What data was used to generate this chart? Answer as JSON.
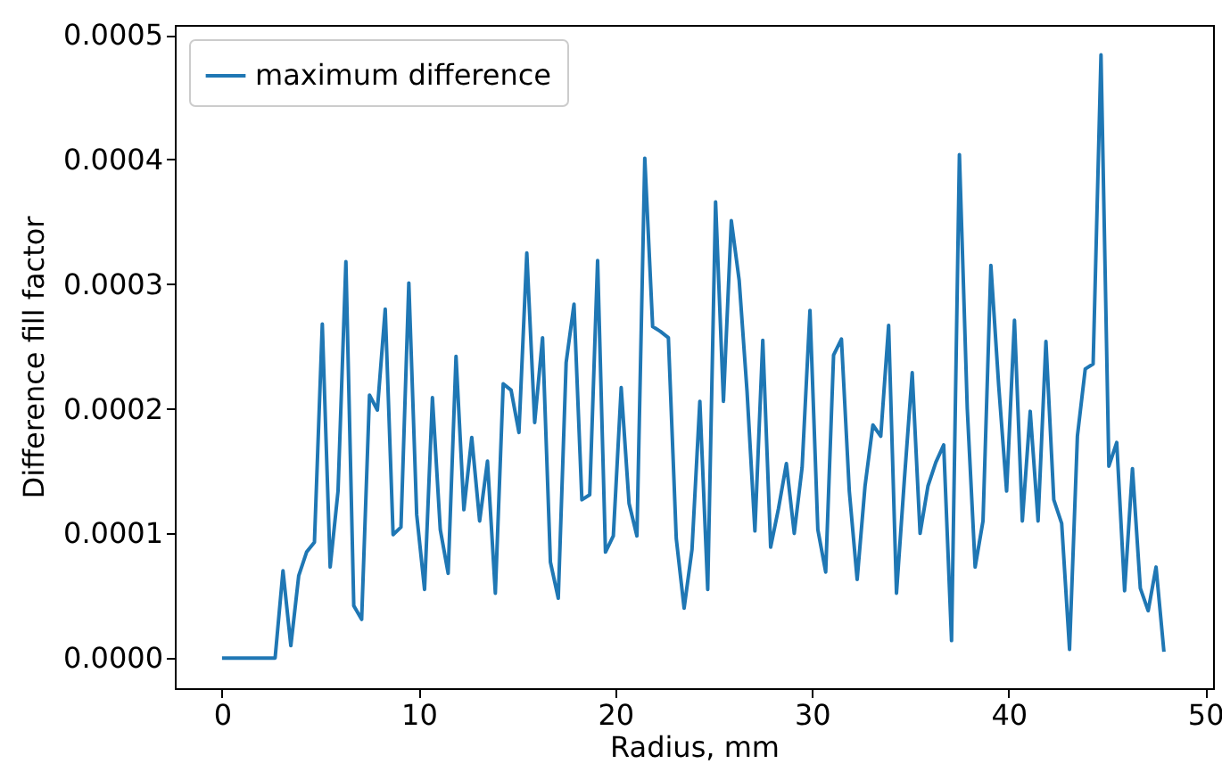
{
  "chart_data": {
    "type": "line",
    "xlabel": "Radius, mm",
    "ylabel": "Difference fill factor",
    "legend": "top left",
    "grid": false,
    "line_style": "solid",
    "xlim": [
      -2.4,
      50.4
    ],
    "xticks": [
      0,
      10,
      20,
      30,
      40,
      50
    ],
    "ylim": [
      -2.42e-05,
      0.000508
    ],
    "yticks": [
      {
        "value": 0,
        "label": "0.0000"
      },
      {
        "value": 0.0001,
        "label": "0.0001"
      },
      {
        "value": 0.0002,
        "label": "0.0002"
      },
      {
        "value": 0.0003,
        "label": "0.0003"
      },
      {
        "value": 0.0004,
        "label": "0.0004"
      },
      {
        "value": 0.0005,
        "label": "0.0005"
      }
    ],
    "series": [
      {
        "name": "maximum difference",
        "color": "#1f77b4",
        "x": [
          0,
          2.7,
          3.1,
          3.5,
          3.9,
          4.3,
          4.7,
          5.1,
          5.5,
          5.9,
          6.3,
          6.7,
          7.1,
          7.5,
          7.9,
          8.3,
          8.7,
          9.1,
          9.5,
          9.9,
          10.3,
          10.7,
          11.1,
          11.5,
          11.9,
          12.3,
          12.7,
          13.1,
          13.5,
          13.9,
          14.3,
          14.7,
          15.1,
          15.5,
          15.9,
          16.3,
          16.7,
          17.1,
          17.5,
          17.9,
          18.3,
          18.7,
          19.1,
          19.5,
          19.9,
          20.3,
          20.7,
          21.1,
          21.5,
          21.9,
          22.3,
          22.7,
          23.1,
          23.5,
          23.9,
          24.3,
          24.7,
          25.1,
          25.5,
          25.9,
          26.3,
          26.7,
          27.1,
          27.5,
          27.9,
          28.3,
          28.7,
          29.1,
          29.5,
          29.9,
          30.3,
          30.7,
          31.1,
          31.5,
          31.9,
          32.3,
          32.7,
          33.1,
          33.5,
          33.9,
          34.3,
          34.7,
          35.1,
          35.5,
          35.9,
          36.3,
          36.7,
          37.1,
          37.5,
          37.9,
          38.3,
          38.7,
          39.1,
          39.5,
          39.9,
          40.3,
          40.7,
          41.1,
          41.5,
          41.9,
          42.3,
          42.7,
          43.1,
          43.5,
          43.9,
          44.3,
          44.7,
          45.1,
          45.5,
          45.9,
          46.3,
          46.7,
          47.1,
          47.5,
          47.9
        ],
        "values": [
          0,
          0,
          7e-05,
          1e-05,
          6.6e-05,
          8.5e-05,
          9.3e-05,
          0.000268,
          7.3e-05,
          0.000134,
          0.000318,
          4.2e-05,
          3.1e-05,
          0.000211,
          0.000199,
          0.00028,
          9.9e-05,
          0.000105,
          0.000301,
          0.000115,
          5.5e-05,
          0.000209,
          0.000103,
          6.8e-05,
          0.000242,
          0.000119,
          0.000177,
          0.00011,
          0.000158,
          5.2e-05,
          0.00022,
          0.000215,
          0.000181,
          0.000325,
          0.000189,
          0.000257,
          7.7e-05,
          4.8e-05,
          0.000237,
          0.000284,
          0.000127,
          0.000131,
          0.000319,
          8.5e-05,
          9.8e-05,
          0.000217,
          0.000124,
          9.8e-05,
          0.000401,
          0.000266,
          0.000262,
          0.000257,
          9.6e-05,
          4e-05,
          8.7e-05,
          0.000206,
          5.5e-05,
          0.000366,
          0.000206,
          0.000351,
          0.000303,
          0.000214,
          0.000102,
          0.000255,
          8.9e-05,
          0.00012,
          0.000156,
          0.0001,
          0.000153,
          0.000279,
          0.000103,
          6.9e-05,
          0.000243,
          0.000256,
          0.000134,
          6.3e-05,
          0.000138,
          0.000187,
          0.000178,
          0.000267,
          5.2e-05,
          0.000143,
          0.000229,
          0.0001,
          0.000138,
          0.000157,
          0.000171,
          1.4e-05,
          0.000404,
          0.0002,
          7.3e-05,
          0.00011,
          0.000315,
          0.000218,
          0.000134,
          0.000271,
          0.00011,
          0.000198,
          0.00011,
          0.000254,
          0.000127,
          0.000108,
          7e-06,
          0.000178,
          0.000232,
          0.000236,
          0.000484,
          0.000154,
          0.000173,
          5.4e-05,
          0.000152,
          5.6e-05,
          3.8e-05,
          7.3e-05,
          5e-06
        ]
      }
    ]
  }
}
